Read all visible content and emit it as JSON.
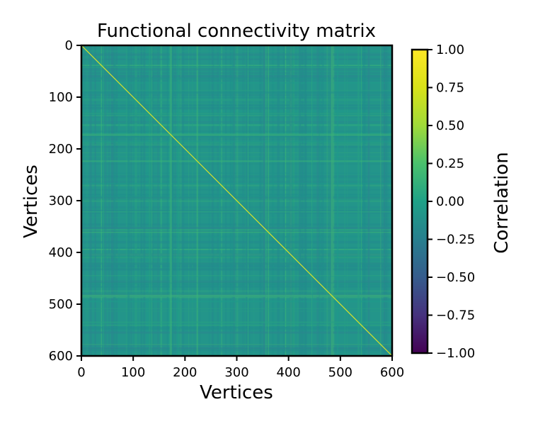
{
  "chart_data": {
    "type": "heatmap",
    "title": "Functional connectivity matrix",
    "xlabel": "Vertices",
    "ylabel": "Vertices",
    "xlim": [
      0,
      600
    ],
    "ylim": [
      600,
      0
    ],
    "x_ticks": [
      0,
      100,
      200,
      300,
      400,
      500,
      600
    ],
    "y_ticks": [
      0,
      100,
      200,
      300,
      400,
      500,
      600
    ],
    "matrix_size": 600,
    "diagonal_value": 1.0,
    "background_correlation": "approximately 0.0 to 0.25 with fine noise and banded structure",
    "colormap": "viridis",
    "colorbar": {
      "label": "Correlation",
      "min": -1.0,
      "max": 1.0,
      "ticks": [
        "1.00",
        "0.75",
        "0.50",
        "0.25",
        "0.00",
        "−0.25",
        "−0.50",
        "−0.75",
        "−1.00"
      ],
      "tick_values": [
        1.0,
        0.75,
        0.5,
        0.25,
        0.0,
        -0.25,
        -0.5,
        -0.75,
        -1.0
      ]
    },
    "grid": false,
    "colors": {
      "viridis_low": "#440154",
      "viridis_mid": "#21918c",
      "viridis_high": "#fde725"
    }
  }
}
